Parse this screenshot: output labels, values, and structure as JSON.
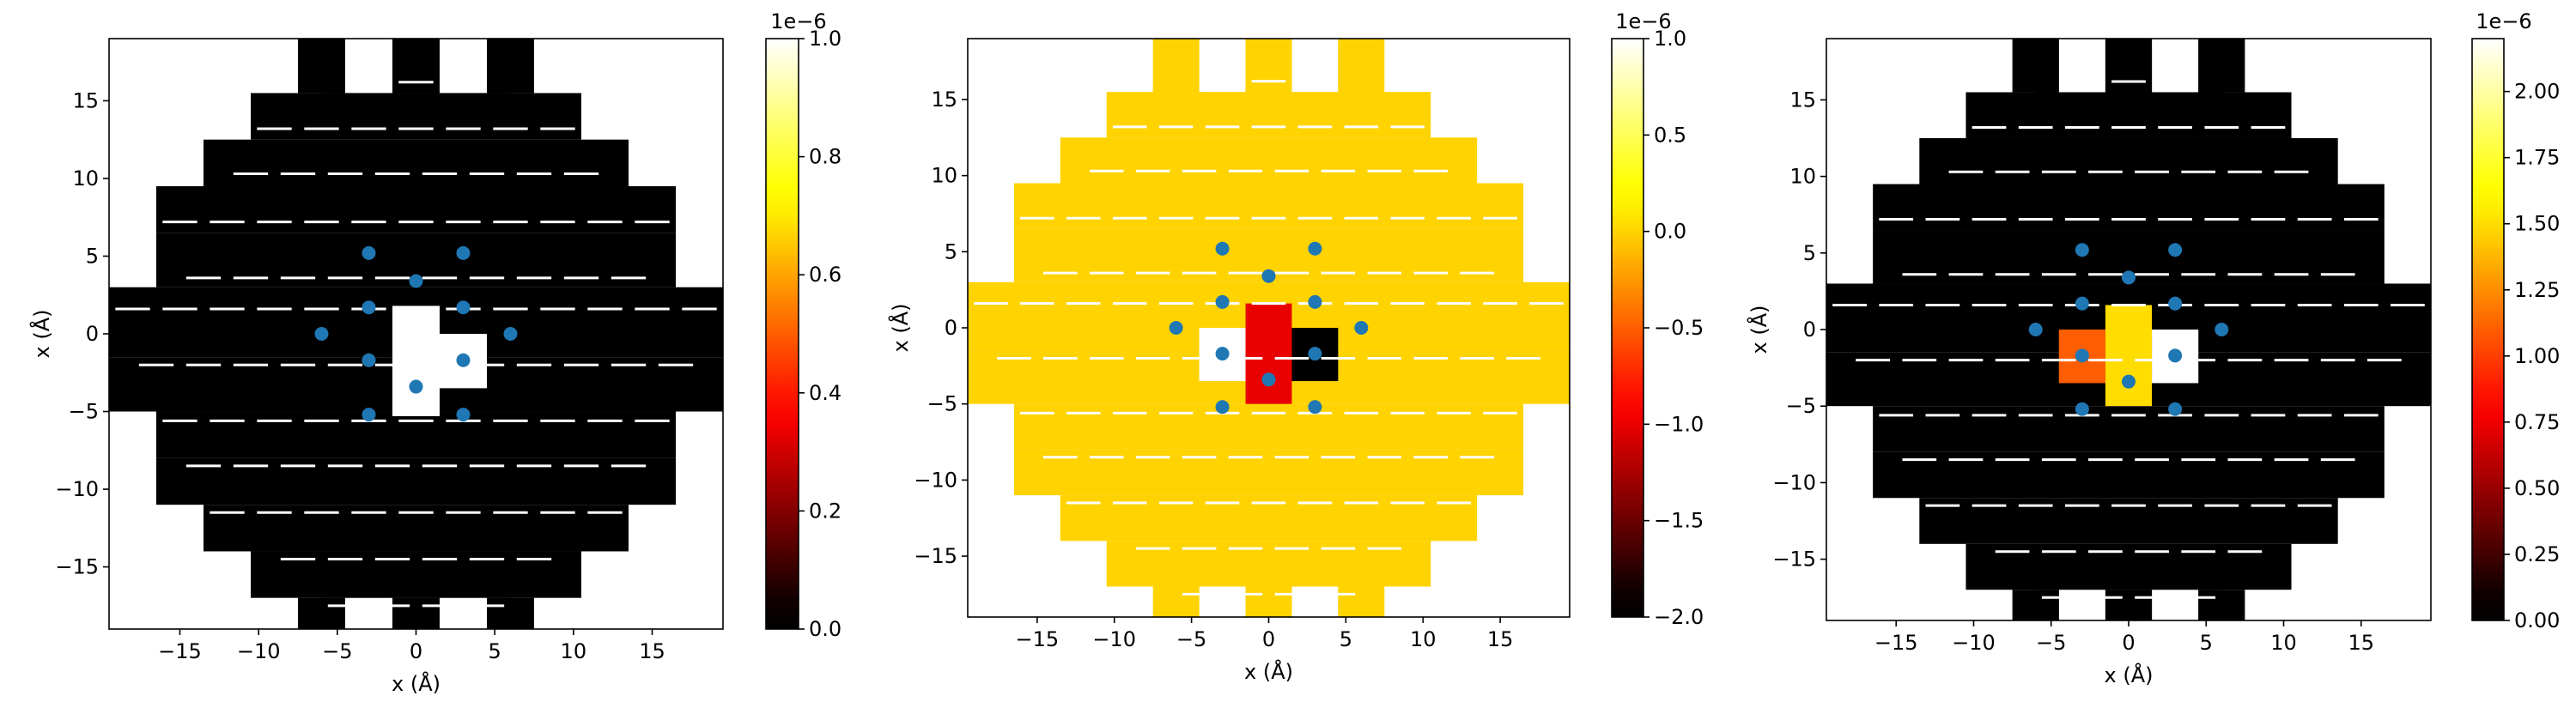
{
  "chart_data": [
    {
      "type": "heatmap",
      "colormap": "hot",
      "xlabel": "x (Å)",
      "ylabel": "x (Å)",
      "xlim": [
        -19.5,
        19.5
      ],
      "ylim": [
        -19,
        19
      ],
      "xticks": [
        -15,
        -10,
        -5,
        0,
        5,
        10,
        15
      ],
      "yticks": [
        -15,
        -10,
        -5,
        0,
        5,
        10,
        15
      ],
      "xtick_labels": [
        "−15",
        "−10",
        "−5",
        "0",
        "5",
        "10",
        "15"
      ],
      "ytick_labels": [
        "−15",
        "−10",
        "−5",
        "0",
        "5",
        "10",
        "15"
      ],
      "colorbar": {
        "range": [
          0.0,
          1.0
        ],
        "ticks": [
          0.0,
          0.2,
          0.4,
          0.6,
          0.8,
          1.0
        ],
        "tick_labels": [
          "0.0",
          "0.2",
          "0.4",
          "0.6",
          "0.8",
          "1.0"
        ],
        "offset_label": "1e−6"
      },
      "background_value": 0.0,
      "cells": [
        {
          "x": [
            -1.5,
            1.5
          ],
          "y": [
            0,
            1.8
          ],
          "value": 1.0
        },
        {
          "x": [
            -1.5,
            1.5
          ],
          "y": [
            -5.3,
            0
          ],
          "value": 1.0
        },
        {
          "x": [
            1.5,
            4.5
          ],
          "y": [
            -3.5,
            0
          ],
          "value": 1.0
        }
      ],
      "points_x": [
        -3,
        3,
        0,
        -3,
        3,
        -6,
        6,
        -3,
        3,
        0,
        -3,
        3
      ],
      "points_y": [
        5.2,
        5.2,
        3.4,
        1.7,
        1.7,
        0,
        0,
        -1.7,
        -1.7,
        -3.4,
        -5.2,
        -5.2
      ]
    },
    {
      "type": "heatmap",
      "colormap": "hot",
      "xlabel": "x (Å)",
      "ylabel": "x (Å)",
      "xlim": [
        -19.5,
        19.5
      ],
      "ylim": [
        -19,
        19
      ],
      "xticks": [
        -15,
        -10,
        -5,
        0,
        5,
        10,
        15
      ],
      "yticks": [
        -15,
        -10,
        -5,
        0,
        5,
        10,
        15
      ],
      "xtick_labels": [
        "−15",
        "−10",
        "−5",
        "0",
        "5",
        "10",
        "15"
      ],
      "ytick_labels": [
        "−15",
        "−10",
        "−5",
        "0",
        "5",
        "10",
        "15"
      ],
      "colorbar": {
        "range": [
          -2.0,
          1.0
        ],
        "ticks": [
          -2.0,
          -1.5,
          -1.0,
          -0.5,
          0.0,
          0.5,
          1.0
        ],
        "tick_labels": [
          "−2.0",
          "−1.5",
          "−1.0",
          "−0.5",
          "0.0",
          "0.5",
          "1.0"
        ],
        "offset_label": "1e−6"
      },
      "background_value": 0.0,
      "cells": [
        {
          "x": [
            -4.5,
            -1.5
          ],
          "y": [
            -3.5,
            0
          ],
          "value": 1.0
        },
        {
          "x": [
            -1.5,
            1.5
          ],
          "y": [
            -5.0,
            1.6
          ],
          "value": -1.0
        },
        {
          "x": [
            1.5,
            4.5
          ],
          "y": [
            -3.5,
            0
          ],
          "value": -2.0
        }
      ],
      "points_x": [
        -3,
        3,
        0,
        -3,
        3,
        -6,
        6,
        -3,
        3,
        0,
        -3,
        3
      ],
      "points_y": [
        5.2,
        5.2,
        3.4,
        1.7,
        1.7,
        0,
        0,
        -1.7,
        -1.7,
        -3.4,
        -5.2,
        -5.2
      ]
    },
    {
      "type": "heatmap",
      "colormap": "hot",
      "xlabel": "x (Å)",
      "ylabel": "x (Å)",
      "xlim": [
        -19.5,
        19.5
      ],
      "ylim": [
        -19,
        19
      ],
      "xticks": [
        -15,
        -10,
        -5,
        0,
        5,
        10,
        15
      ],
      "yticks": [
        -15,
        -10,
        -5,
        0,
        5,
        10,
        15
      ],
      "xtick_labels": [
        "−15",
        "−10",
        "−5",
        "0",
        "5",
        "10",
        "15"
      ],
      "ytick_labels": [
        "−15",
        "−10",
        "−5",
        "0",
        "5",
        "10",
        "15"
      ],
      "colorbar": {
        "range": [
          0.0,
          2.2
        ],
        "ticks": [
          0.0,
          0.25,
          0.5,
          0.75,
          1.0,
          1.25,
          1.5,
          1.75,
          2.0
        ],
        "tick_labels": [
          "0.00",
          "0.25",
          "0.50",
          "0.75",
          "1.00",
          "1.25",
          "1.50",
          "1.75",
          "2.00"
        ],
        "offset_label": "1e−6"
      },
      "background_value": 0.0,
      "cells": [
        {
          "x": [
            -4.5,
            -1.5
          ],
          "y": [
            -3.5,
            0
          ],
          "value": 1.1
        },
        {
          "x": [
            -1.5,
            1.5
          ],
          "y": [
            -5.0,
            1.6
          ],
          "value": 1.5
        },
        {
          "x": [
            1.5,
            4.5
          ],
          "y": [
            -3.5,
            0
          ],
          "value": 2.2
        }
      ],
      "points_x": [
        -3,
        3,
        0,
        -3,
        3,
        -6,
        6,
        -3,
        3,
        0,
        -3,
        3
      ],
      "points_y": [
        5.2,
        5.2,
        3.4,
        1.7,
        1.7,
        0,
        0,
        -1.7,
        -1.7,
        -3.4,
        -5.2,
        -5.2
      ]
    }
  ]
}
